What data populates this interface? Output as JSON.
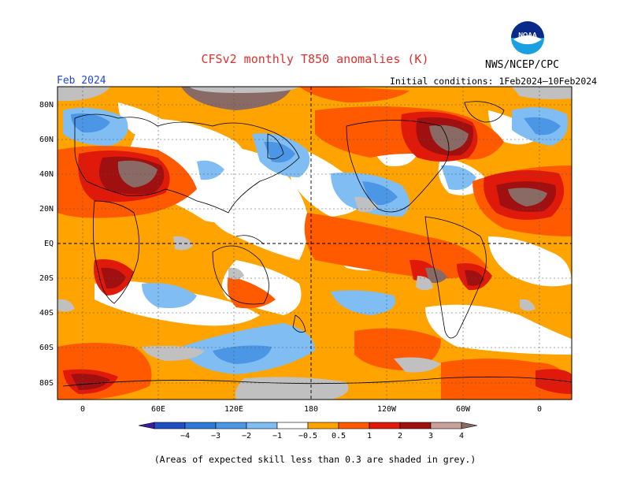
{
  "header": {
    "title": "CFSv2 monthly T850 anomalies (K)",
    "month": "Feb 2024",
    "initial_conditions": "Initial conditions: 1Feb2024–10Feb2024",
    "agency": "NWS/NCEP/CPC",
    "logo_text": "NOAA"
  },
  "map": {
    "lat_labels": [
      "80N",
      "60N",
      "40N",
      "20N",
      "EQ",
      "20S",
      "40S",
      "60S",
      "80S"
    ],
    "lon_labels": [
      "0",
      "60E",
      "120E",
      "180",
      "120W",
      "60W",
      "0"
    ]
  },
  "colorbar": {
    "labels": [
      "−4",
      "−3",
      "−2",
      "−1",
      "−0.5",
      "0.5",
      "1",
      "2",
      "3",
      "4"
    ],
    "colors": [
      "#3d1d9e",
      "#1f4fc2",
      "#2f7ad8",
      "#4b97e6",
      "#80bdf3",
      "#ffffff",
      "#ffa300",
      "#ff5a00",
      "#e01a0a",
      "#a01010",
      "#c8a29a",
      "#8a6a64"
    ]
  },
  "footer": {
    "note": "(Areas of expected skill less than 0.3 are shaded in grey.)"
  }
}
